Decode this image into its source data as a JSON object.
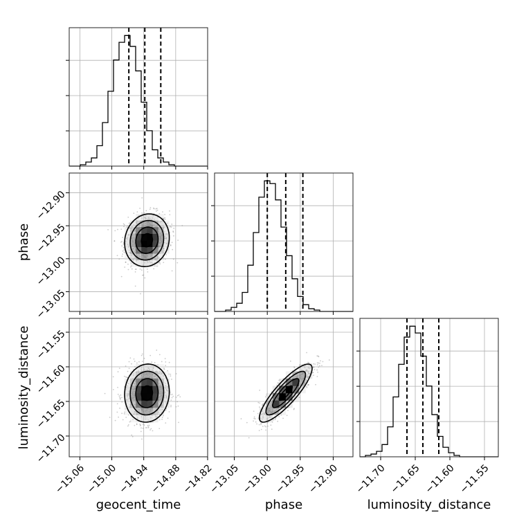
{
  "chart_data": {
    "type": "corner",
    "grid": true,
    "parameters": [
      {
        "name": "geocent_time",
        "label": "geocent_time",
        "range": [
          -15.08,
          -14.82
        ],
        "ticks": [
          -15.06,
          -15.0,
          -14.94,
          -14.88,
          -14.82
        ],
        "tick_labels": [
          "−15.06",
          "−15.00",
          "−14.94",
          "−14.88",
          "−14.82"
        ],
        "quantiles": [
          -14.968,
          -14.938,
          -14.908
        ],
        "histogram": {
          "edges_start": -15.08,
          "bin_width": 0.0104,
          "counts": [
            0,
            0,
            1,
            3,
            6,
            15,
            32,
            55,
            78,
            91,
            96,
            88,
            70,
            47,
            26,
            12,
            6,
            3,
            1,
            0,
            0,
            0,
            0,
            0,
            0
          ]
        },
        "hist_yticks": [
          0.27,
          0.54,
          0.81
        ],
        "contour": {
          "mean": -14.934,
          "sigma": 0.021
        }
      },
      {
        "name": "phase",
        "label": "phase",
        "range": [
          -13.08,
          -12.87
        ],
        "ticks": [
          -13.05,
          -13.0,
          -12.95,
          -12.9
        ],
        "tick_labels": [
          "−13.05",
          "−13.00",
          "−12.95",
          "−12.90"
        ],
        "quantiles": [
          -13.0,
          -12.972,
          -12.946
        ],
        "histogram": {
          "edges_start": -13.08,
          "bin_width": 0.0084,
          "counts": [
            0,
            0,
            1,
            3,
            6,
            14,
            34,
            58,
            84,
            96,
            94,
            82,
            62,
            41,
            24,
            11,
            5,
            2,
            1,
            0,
            0,
            0,
            0,
            0,
            0
          ]
        },
        "hist_yticks": [
          0.27,
          0.54,
          0.81
        ],
        "contour": {
          "mean": -12.972,
          "sigma": 0.02
        }
      },
      {
        "name": "luminosity_distance",
        "label": "luminosity_distance",
        "range": [
          -11.73,
          -11.53
        ],
        "ticks": [
          -11.7,
          -11.65,
          -11.6,
          -11.55
        ],
        "tick_labels": [
          "−11.70",
          "−11.65",
          "−11.60",
          "−11.55"
        ],
        "quantiles": [
          -11.662,
          -11.639,
          -11.616
        ],
        "histogram": {
          "edges_start": -11.73,
          "bin_width": 0.008,
          "counts": [
            0,
            1,
            2,
            4,
            9,
            22,
            44,
            68,
            88,
            96,
            91,
            74,
            52,
            31,
            15,
            7,
            3,
            1,
            0,
            0,
            0,
            0,
            0,
            0,
            0
          ]
        },
        "hist_yticks": [
          0.27,
          0.54,
          0.81
        ],
        "contour": {
          "mean": -11.638,
          "sigma": 0.021
        }
      }
    ],
    "correlations": [
      {
        "pair": [
          "geocent_time",
          "phase"
        ],
        "rho": 0.1
      },
      {
        "pair": [
          "geocent_time",
          "luminosity_distance"
        ],
        "rho": 0.05
      },
      {
        "pair": [
          "phase",
          "luminosity_distance"
        ],
        "rho": 0.85
      }
    ],
    "contour_levels_sigma": [
      0.5,
      1.0,
      1.5,
      2.0
    ]
  }
}
